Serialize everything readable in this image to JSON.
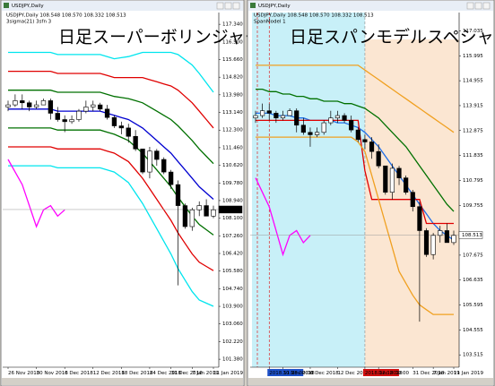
{
  "candles": [
    [
      113.4,
      113.7,
      113.2,
      113.5
    ],
    [
      113.5,
      114.0,
      113.4,
      113.7
    ],
    [
      113.7,
      114.0,
      113.3,
      113.6
    ],
    [
      113.6,
      113.7,
      113.2,
      113.4
    ],
    [
      113.4,
      113.7,
      113.3,
      113.5
    ],
    [
      113.5,
      113.8,
      113.5,
      113.7
    ],
    [
      113.7,
      113.8,
      112.8,
      113.1
    ],
    [
      113.1,
      113.4,
      112.7,
      112.8
    ],
    [
      112.8,
      113.0,
      112.2,
      112.7
    ],
    [
      112.7,
      113.0,
      112.6,
      112.8
    ],
    [
      112.8,
      113.3,
      112.7,
      113.2
    ],
    [
      113.2,
      113.7,
      113.1,
      113.4
    ],
    [
      113.4,
      113.7,
      113.2,
      113.5
    ],
    [
      113.5,
      113.6,
      113.2,
      113.3
    ],
    [
      113.3,
      113.5,
      112.8,
      112.9
    ],
    [
      112.9,
      113.0,
      112.4,
      112.5
    ],
    [
      112.5,
      112.7,
      112.1,
      112.4
    ],
    [
      112.4,
      112.6,
      111.7,
      112.0
    ],
    [
      112.0,
      112.3,
      111.3,
      111.4
    ],
    [
      111.4,
      111.4,
      110.2,
      110.3
    ],
    [
      110.3,
      111.5,
      110.0,
      111.3
    ],
    [
      111.3,
      111.4,
      110.6,
      110.9
    ],
    [
      110.9,
      111.0,
      110.2,
      110.3
    ],
    [
      110.3,
      110.4,
      109.5,
      109.7
    ],
    [
      109.7,
      109.9,
      104.9,
      108.7
    ],
    [
      108.7,
      108.8,
      107.6,
      107.7
    ],
    [
      107.7,
      108.6,
      107.5,
      108.5
    ],
    [
      108.5,
      108.9,
      108.2,
      108.7
    ],
    [
      108.7,
      109.0,
      108.2,
      108.2
    ],
    [
      108.2,
      108.7,
      108.1,
      108.5
    ]
  ],
  "windows": [
    {
      "title": "USDJPY,Daily",
      "header": "USDJPY,Daily  108.548 108.570 108.332 108.513",
      "indicator": "3sigma(21) 3sfn 3",
      "overlay_title": "日足スーパーボリンジャー",
      "ylim": [
        101.0,
        117.9
      ],
      "yticks": [
        {
          "value": 117.34,
          "label": "117.340"
        },
        {
          "value": 116.5,
          "label": "116.500"
        },
        {
          "value": 115.66,
          "label": "115.660"
        },
        {
          "value": 114.82,
          "label": "114.820"
        },
        {
          "value": 113.98,
          "label": "113.980"
        },
        {
          "value": 113.14,
          "label": "113.140"
        },
        {
          "value": 112.3,
          "label": "112.300"
        },
        {
          "value": 111.46,
          "label": "111.460"
        },
        {
          "value": 110.62,
          "label": "110.620"
        },
        {
          "value": 109.78,
          "label": "109.780"
        },
        {
          "value": 108.94,
          "label": "108.940"
        },
        {
          "value": 108.1,
          "label": "108.100"
        },
        {
          "value": 107.26,
          "label": "107.260"
        },
        {
          "value": 106.42,
          "label": "106.420"
        },
        {
          "value": 105.58,
          "label": "105.580"
        },
        {
          "value": 104.74,
          "label": "104.740"
        },
        {
          "value": 103.9,
          "label": "103.900"
        },
        {
          "value": 103.06,
          "label": "103.060"
        },
        {
          "value": 102.22,
          "label": "102.220"
        },
        {
          "value": 101.38,
          "label": "101.380"
        }
      ],
      "current_price": {
        "value": 108.513,
        "label": "108.513"
      },
      "dates": [
        "26 Nov 2018",
        null,
        null,
        null,
        "30 Nov 2018",
        null,
        null,
        null,
        "6 Dec 2018",
        null,
        null,
        null,
        "12 Dec 2018",
        null,
        null,
        null,
        "18 Dec 2018",
        null,
        null,
        null,
        "24 Dec 2018",
        null,
        null,
        "31 Dec 2018",
        null,
        null,
        "7 Jan 2019",
        null,
        null,
        "11 Jan 2019"
      ],
      "lines": [
        {
          "color": "#00e5ee",
          "values": [
            116.0,
            116.0,
            116.0,
            116.0,
            116.0,
            116.0,
            116.0,
            115.9,
            115.9,
            115.9,
            115.9,
            115.9,
            115.9,
            115.9,
            115.8,
            115.7,
            115.75,
            115.8,
            115.9,
            116.0,
            116.0,
            116.0,
            116.0,
            116.0,
            115.9,
            115.65,
            115.4,
            115.0,
            114.55,
            114.1
          ]
        },
        {
          "color": "#e00000",
          "values": [
            115.1,
            115.1,
            115.1,
            115.1,
            115.1,
            115.1,
            115.1,
            115.0,
            115.0,
            115.0,
            115.0,
            115.0,
            115.0,
            115.0,
            114.9,
            114.8,
            114.8,
            114.8,
            114.8,
            114.8,
            114.7,
            114.6,
            114.5,
            114.4,
            114.2,
            113.9,
            113.6,
            113.2,
            112.8,
            112.4
          ]
        },
        {
          "color": "#007000",
          "values": [
            114.2,
            114.2,
            114.2,
            114.2,
            114.2,
            114.2,
            114.2,
            114.1,
            114.1,
            114.1,
            114.1,
            114.1,
            114.1,
            114.1,
            114.0,
            113.9,
            113.85,
            113.8,
            113.7,
            113.6,
            113.4,
            113.2,
            113.0,
            112.8,
            112.5,
            112.15,
            111.8,
            111.4,
            111.05,
            110.7
          ]
        },
        {
          "color": "#0000d0",
          "values": [
            113.3,
            113.3,
            113.3,
            113.3,
            113.3,
            113.3,
            113.3,
            113.2,
            113.2,
            113.2,
            113.2,
            113.2,
            113.2,
            113.2,
            113.1,
            113.0,
            112.9,
            112.8,
            112.6,
            112.4,
            112.1,
            111.8,
            111.5,
            111.2,
            110.8,
            110.4,
            110.0,
            109.6,
            109.3,
            109.0
          ]
        },
        {
          "color": "#007000",
          "values": [
            112.4,
            112.4,
            112.4,
            112.4,
            112.4,
            112.4,
            112.4,
            112.3,
            112.3,
            112.3,
            112.3,
            112.3,
            112.3,
            112.3,
            112.2,
            112.1,
            111.95,
            111.8,
            111.5,
            111.2,
            110.8,
            110.4,
            110.0,
            109.6,
            109.1,
            108.65,
            108.2,
            107.8,
            107.55,
            107.3
          ]
        },
        {
          "color": "#e00000",
          "values": [
            111.5,
            111.5,
            111.5,
            111.5,
            111.5,
            111.5,
            111.5,
            111.4,
            111.4,
            111.4,
            111.4,
            111.4,
            111.4,
            111.4,
            111.3,
            111.2,
            111.0,
            110.8,
            110.4,
            110.0,
            109.5,
            109.0,
            108.5,
            108.0,
            107.4,
            106.9,
            106.4,
            106.0,
            105.8,
            105.6
          ]
        },
        {
          "color": "#00e5ee",
          "values": [
            110.6,
            110.6,
            110.6,
            110.6,
            110.6,
            110.6,
            110.6,
            110.5,
            110.5,
            110.5,
            110.5,
            110.5,
            110.5,
            110.5,
            110.4,
            110.3,
            110.05,
            109.8,
            109.3,
            108.8,
            108.2,
            107.6,
            107.0,
            106.4,
            105.7,
            105.15,
            104.6,
            104.2,
            104.05,
            103.9
          ]
        },
        {
          "color": "#ff00ff",
          "values": [
            110.9,
            110.3,
            109.7,
            108.7,
            107.7,
            108.5,
            108.7,
            108.2,
            108.5,
            null,
            null,
            null,
            null,
            null,
            null,
            null,
            null,
            null,
            null,
            null,
            null,
            null,
            null,
            null,
            null,
            null,
            null,
            null,
            null,
            null
          ]
        }
      ]
    },
    {
      "title": "USDJPY,Daily",
      "header": "USDJPY,Daily  108.548 108.570 108.332 108.513",
      "indicator": "SpanModel 1",
      "overlay_title": "日足スパンモデルスペシャル",
      "ylim": [
        103.0,
        117.8
      ],
      "yticks": [
        {
          "value": 117.035,
          "label": "117.035"
        },
        {
          "value": 115.995,
          "label": "115.995"
        },
        {
          "value": 114.955,
          "label": "114.955"
        },
        {
          "value": 113.915,
          "label": "113.915"
        },
        {
          "value": 112.875,
          "label": "112.875"
        },
        {
          "value": 111.835,
          "label": "111.835"
        },
        {
          "value": 110.795,
          "label": "110.795"
        },
        {
          "value": 109.755,
          "label": "109.755"
        },
        {
          "value": 107.675,
          "label": "107.675"
        },
        {
          "value": 106.635,
          "label": "106.635"
        },
        {
          "value": 105.595,
          "label": "105.595"
        },
        {
          "value": 104.555,
          "label": "104.555"
        },
        {
          "value": 103.515,
          "label": "103.515"
        }
      ],
      "current_price": {
        "value": 108.513,
        "label": "108.513"
      },
      "dates": [
        null,
        null,
        "2018.11.28 00:00",
        null,
        "30 Nov 2018",
        null,
        null,
        null,
        "6 Dec 2018",
        null,
        null,
        null,
        "12 Dec 2018",
        null,
        null,
        null,
        "2018.12.18 00:00",
        null,
        "Dec 2018",
        null,
        null,
        null,
        null,
        "31 Dec 2018",
        null,
        null,
        "7 Jan 2019",
        null,
        null,
        "11 Jan 2019"
      ],
      "lines": [
        {
          "color": "#f0a020",
          "values": [
            115.6,
            115.6,
            115.6,
            115.6,
            115.6,
            115.6,
            115.6,
            115.6,
            115.6,
            115.6,
            115.6,
            115.6,
            115.6,
            115.6,
            115.6,
            115.6,
            115.4,
            115.2,
            115.0,
            114.8,
            114.6,
            114.4,
            114.2,
            114.0,
            113.8,
            113.6,
            113.4,
            113.2,
            113.0,
            112.8
          ]
        },
        {
          "color": "#007000",
          "values": [
            114.6,
            114.6,
            114.5,
            114.5,
            114.4,
            114.4,
            114.3,
            114.3,
            114.2,
            114.2,
            114.1,
            114.1,
            114.1,
            114.0,
            114.0,
            113.9,
            113.8,
            113.6,
            113.4,
            113.1,
            112.8,
            112.5,
            112.2,
            111.8,
            111.4,
            111.0,
            110.6,
            110.2,
            109.8,
            109.5
          ]
        },
        {
          "color": "#1e6ee8",
          "values": [
            113.6,
            113.6,
            113.6,
            113.5,
            113.5,
            113.5,
            113.4,
            113.4,
            113.3,
            113.3,
            113.3,
            113.3,
            113.2,
            113.2,
            113.1,
            113.0,
            112.8,
            112.5,
            112.2,
            111.8,
            111.4,
            111.0,
            110.6,
            110.2,
            109.8,
            109.4,
            109.0,
            108.7,
            108.5,
            108.3
          ]
        },
        {
          "color": "#e00000",
          "values": [
            113.3,
            113.3,
            113.3,
            113.3,
            113.3,
            113.3,
            113.3,
            113.3,
            113.3,
            113.3,
            113.3,
            113.3,
            113.3,
            113.3,
            113.3,
            113.3,
            111.2,
            110.0,
            110.0,
            110.0,
            110.0,
            110.0,
            110.0,
            110.0,
            110.0,
            109.0,
            109.0,
            109.0,
            109.0,
            109.0
          ]
        },
        {
          "color": "#f0a020",
          "values": [
            112.6,
            112.6,
            112.6,
            112.6,
            112.6,
            112.6,
            112.6,
            112.6,
            112.6,
            112.6,
            112.6,
            112.6,
            112.6,
            112.6,
            112.6,
            112.4,
            112.0,
            111.0,
            110.0,
            109.0,
            108.0,
            107.0,
            106.5,
            106.0,
            105.6,
            105.4,
            105.2,
            105.2,
            105.2,
            105.2
          ]
        },
        {
          "color": "#ff00ff",
          "values": [
            110.9,
            110.3,
            109.7,
            108.7,
            107.7,
            108.5,
            108.7,
            108.2,
            108.5,
            null,
            null,
            null,
            null,
            null,
            null,
            null,
            null,
            null,
            null,
            null,
            null,
            null,
            null,
            null,
            null,
            null,
            null,
            null,
            null,
            null
          ]
        }
      ]
    }
  ]
}
